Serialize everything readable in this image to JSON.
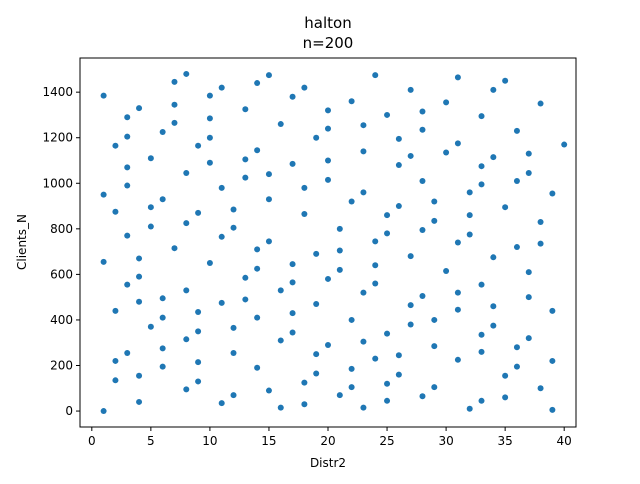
{
  "chart_data": {
    "type": "scatter",
    "title": "halton",
    "subtitle": "n=200",
    "xlabel": "Distr2",
    "ylabel": "Clients_N",
    "xlim": [
      -1,
      41
    ],
    "ylim": [
      -70,
      1550
    ],
    "xticks": [
      0,
      5,
      10,
      15,
      20,
      25,
      30,
      35,
      40
    ],
    "yticks": [
      0,
      200,
      400,
      600,
      800,
      1000,
      1200,
      1400
    ],
    "grid": false,
    "marker_color": "#1f77b4",
    "points": [
      [
        1,
        1385
      ],
      [
        1,
        950
      ],
      [
        1,
        655
      ],
      [
        1,
        0
      ],
      [
        2,
        1165
      ],
      [
        2,
        875
      ],
      [
        2,
        440
      ],
      [
        2,
        220
      ],
      [
        2,
        135
      ],
      [
        3,
        1290
      ],
      [
        3,
        1205
      ],
      [
        3,
        1070
      ],
      [
        3,
        990
      ],
      [
        3,
        770
      ],
      [
        3,
        555
      ],
      [
        3,
        255
      ],
      [
        4,
        1330
      ],
      [
        4,
        670
      ],
      [
        4,
        590
      ],
      [
        4,
        480
      ],
      [
        4,
        155
      ],
      [
        4,
        40
      ],
      [
        5,
        1110
      ],
      [
        5,
        895
      ],
      [
        5,
        810
      ],
      [
        5,
        370
      ],
      [
        6,
        1225
      ],
      [
        6,
        930
      ],
      [
        6,
        495
      ],
      [
        6,
        410
      ],
      [
        6,
        275
      ],
      [
        6,
        195
      ],
      [
        7,
        1445
      ],
      [
        7,
        1345
      ],
      [
        7,
        1265
      ],
      [
        7,
        715
      ],
      [
        8,
        1480
      ],
      [
        8,
        1045
      ],
      [
        8,
        825
      ],
      [
        8,
        530
      ],
      [
        8,
        315
      ],
      [
        8,
        95
      ],
      [
        9,
        1165
      ],
      [
        9,
        870
      ],
      [
        9,
        435
      ],
      [
        9,
        350
      ],
      [
        9,
        215
      ],
      [
        9,
        130
      ],
      [
        10,
        1385
      ],
      [
        10,
        1285
      ],
      [
        10,
        1200
      ],
      [
        10,
        1090
      ],
      [
        10,
        650
      ],
      [
        11,
        1420
      ],
      [
        11,
        980
      ],
      [
        11,
        765
      ],
      [
        11,
        475
      ],
      [
        11,
        35
      ],
      [
        12,
        885
      ],
      [
        12,
        805
      ],
      [
        12,
        365
      ],
      [
        12,
        255
      ],
      [
        12,
        70
      ],
      [
        13,
        1325
      ],
      [
        13,
        1105
      ],
      [
        13,
        1025
      ],
      [
        13,
        585
      ],
      [
        13,
        490
      ],
      [
        14,
        1440
      ],
      [
        14,
        1145
      ],
      [
        14,
        710
      ],
      [
        14,
        625
      ],
      [
        14,
        410
      ],
      [
        14,
        190
      ],
      [
        15,
        1475
      ],
      [
        15,
        1040
      ],
      [
        15,
        930
      ],
      [
        15,
        745
      ],
      [
        15,
        90
      ],
      [
        16,
        1260
      ],
      [
        16,
        530
      ],
      [
        16,
        310
      ],
      [
        16,
        15
      ],
      [
        17,
        1380
      ],
      [
        17,
        1085
      ],
      [
        17,
        645
      ],
      [
        17,
        565
      ],
      [
        17,
        430
      ],
      [
        17,
        345
      ],
      [
        18,
        1420
      ],
      [
        18,
        980
      ],
      [
        18,
        865
      ],
      [
        18,
        125
      ],
      [
        18,
        30
      ],
      [
        19,
        1200
      ],
      [
        19,
        690
      ],
      [
        19,
        470
      ],
      [
        19,
        250
      ],
      [
        19,
        165
      ],
      [
        20,
        1320
      ],
      [
        20,
        1240
      ],
      [
        20,
        1100
      ],
      [
        20,
        1015
      ],
      [
        20,
        580
      ],
      [
        20,
        290
      ],
      [
        21,
        800
      ],
      [
        21,
        705
      ],
      [
        21,
        620
      ],
      [
        21,
        70
      ],
      [
        22,
        1360
      ],
      [
        22,
        920
      ],
      [
        22,
        400
      ],
      [
        22,
        185
      ],
      [
        22,
        105
      ],
      [
        23,
        1255
      ],
      [
        23,
        1140
      ],
      [
        23,
        960
      ],
      [
        23,
        520
      ],
      [
        23,
        305
      ],
      [
        23,
        15
      ],
      [
        24,
        1475
      ],
      [
        24,
        745
      ],
      [
        24,
        640
      ],
      [
        24,
        560
      ],
      [
        24,
        230
      ],
      [
        25,
        1300
      ],
      [
        25,
        860
      ],
      [
        25,
        780
      ],
      [
        25,
        340
      ],
      [
        25,
        120
      ],
      [
        25,
        45
      ],
      [
        26,
        1195
      ],
      [
        26,
        1080
      ],
      [
        26,
        900
      ],
      [
        26,
        245
      ],
      [
        26,
        160
      ],
      [
        27,
        1410
      ],
      [
        27,
        1120
      ],
      [
        27,
        680
      ],
      [
        27,
        465
      ],
      [
        27,
        380
      ],
      [
        28,
        1315
      ],
      [
        28,
        1235
      ],
      [
        28,
        1010
      ],
      [
        28,
        795
      ],
      [
        28,
        505
      ],
      [
        28,
        65
      ],
      [
        29,
        920
      ],
      [
        29,
        835
      ],
      [
        29,
        400
      ],
      [
        29,
        285
      ],
      [
        29,
        105
      ],
      [
        30,
        1355
      ],
      [
        30,
        1135
      ],
      [
        30,
        615
      ],
      [
        31,
        1465
      ],
      [
        31,
        1175
      ],
      [
        31,
        740
      ],
      [
        31,
        520
      ],
      [
        31,
        445
      ],
      [
        31,
        225
      ],
      [
        32,
        960
      ],
      [
        32,
        860
      ],
      [
        32,
        775
      ],
      [
        32,
        10
      ],
      [
        33,
        1295
      ],
      [
        33,
        1075
      ],
      [
        33,
        995
      ],
      [
        33,
        555
      ],
      [
        33,
        335
      ],
      [
        33,
        260
      ],
      [
        33,
        45
      ],
      [
        34,
        1410
      ],
      [
        34,
        1115
      ],
      [
        34,
        675
      ],
      [
        34,
        460
      ],
      [
        34,
        375
      ],
      [
        35,
        1450
      ],
      [
        35,
        895
      ],
      [
        35,
        155
      ],
      [
        35,
        60
      ],
      [
        36,
        1230
      ],
      [
        36,
        1010
      ],
      [
        36,
        720
      ],
      [
        36,
        280
      ],
      [
        36,
        195
      ],
      [
        37,
        1130
      ],
      [
        37,
        1045
      ],
      [
        37,
        610
      ],
      [
        37,
        500
      ],
      [
        37,
        320
      ],
      [
        38,
        1350
      ],
      [
        38,
        830
      ],
      [
        38,
        735
      ],
      [
        38,
        100
      ],
      [
        39,
        955
      ],
      [
        39,
        440
      ],
      [
        39,
        220
      ],
      [
        39,
        5
      ],
      [
        40,
        1170
      ]
    ]
  }
}
